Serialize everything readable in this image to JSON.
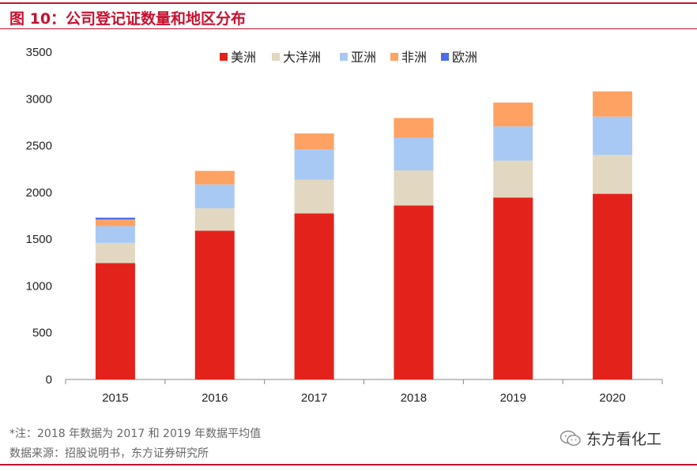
{
  "title": "图 10：公司登记证数量和地区分布",
  "note": "*注：2018 年数据为 2017 和 2019 年数据平均值",
  "source": "数据来源：招股说明书，东方证券研究所",
  "brand": {
    "name": "东方看化工",
    "icon": "wechat-icon"
  },
  "colors": {
    "accent": "#c8102e"
  },
  "chart_data": {
    "type": "bar",
    "stacked": true,
    "categories": [
      "2015",
      "2016",
      "2017",
      "2018",
      "2019",
      "2020"
    ],
    "series": [
      {
        "name": "美洲",
        "color": "#e3231b",
        "values": [
          1245,
          1590,
          1775,
          1860,
          1945,
          1985
        ]
      },
      {
        "name": "大洋洲",
        "color": "#e2d8c1",
        "values": [
          215,
          240,
          360,
          375,
          395,
          415
        ]
      },
      {
        "name": "亚洲",
        "color": "#a9c9f5",
        "values": [
          180,
          255,
          325,
          350,
          365,
          410
        ]
      },
      {
        "name": "非洲",
        "color": "#fda262",
        "values": [
          70,
          145,
          170,
          210,
          255,
          270
        ]
      },
      {
        "name": "欧洲",
        "color": "#4a6fe8",
        "values": [
          20,
          0,
          0,
          0,
          0,
          0
        ]
      }
    ],
    "yticks": [
      "0",
      "500",
      "1000",
      "1500",
      "2000",
      "2500",
      "3000",
      "3500"
    ],
    "ylim": [
      0,
      3500
    ],
    "legend": "top",
    "grid": false
  }
}
